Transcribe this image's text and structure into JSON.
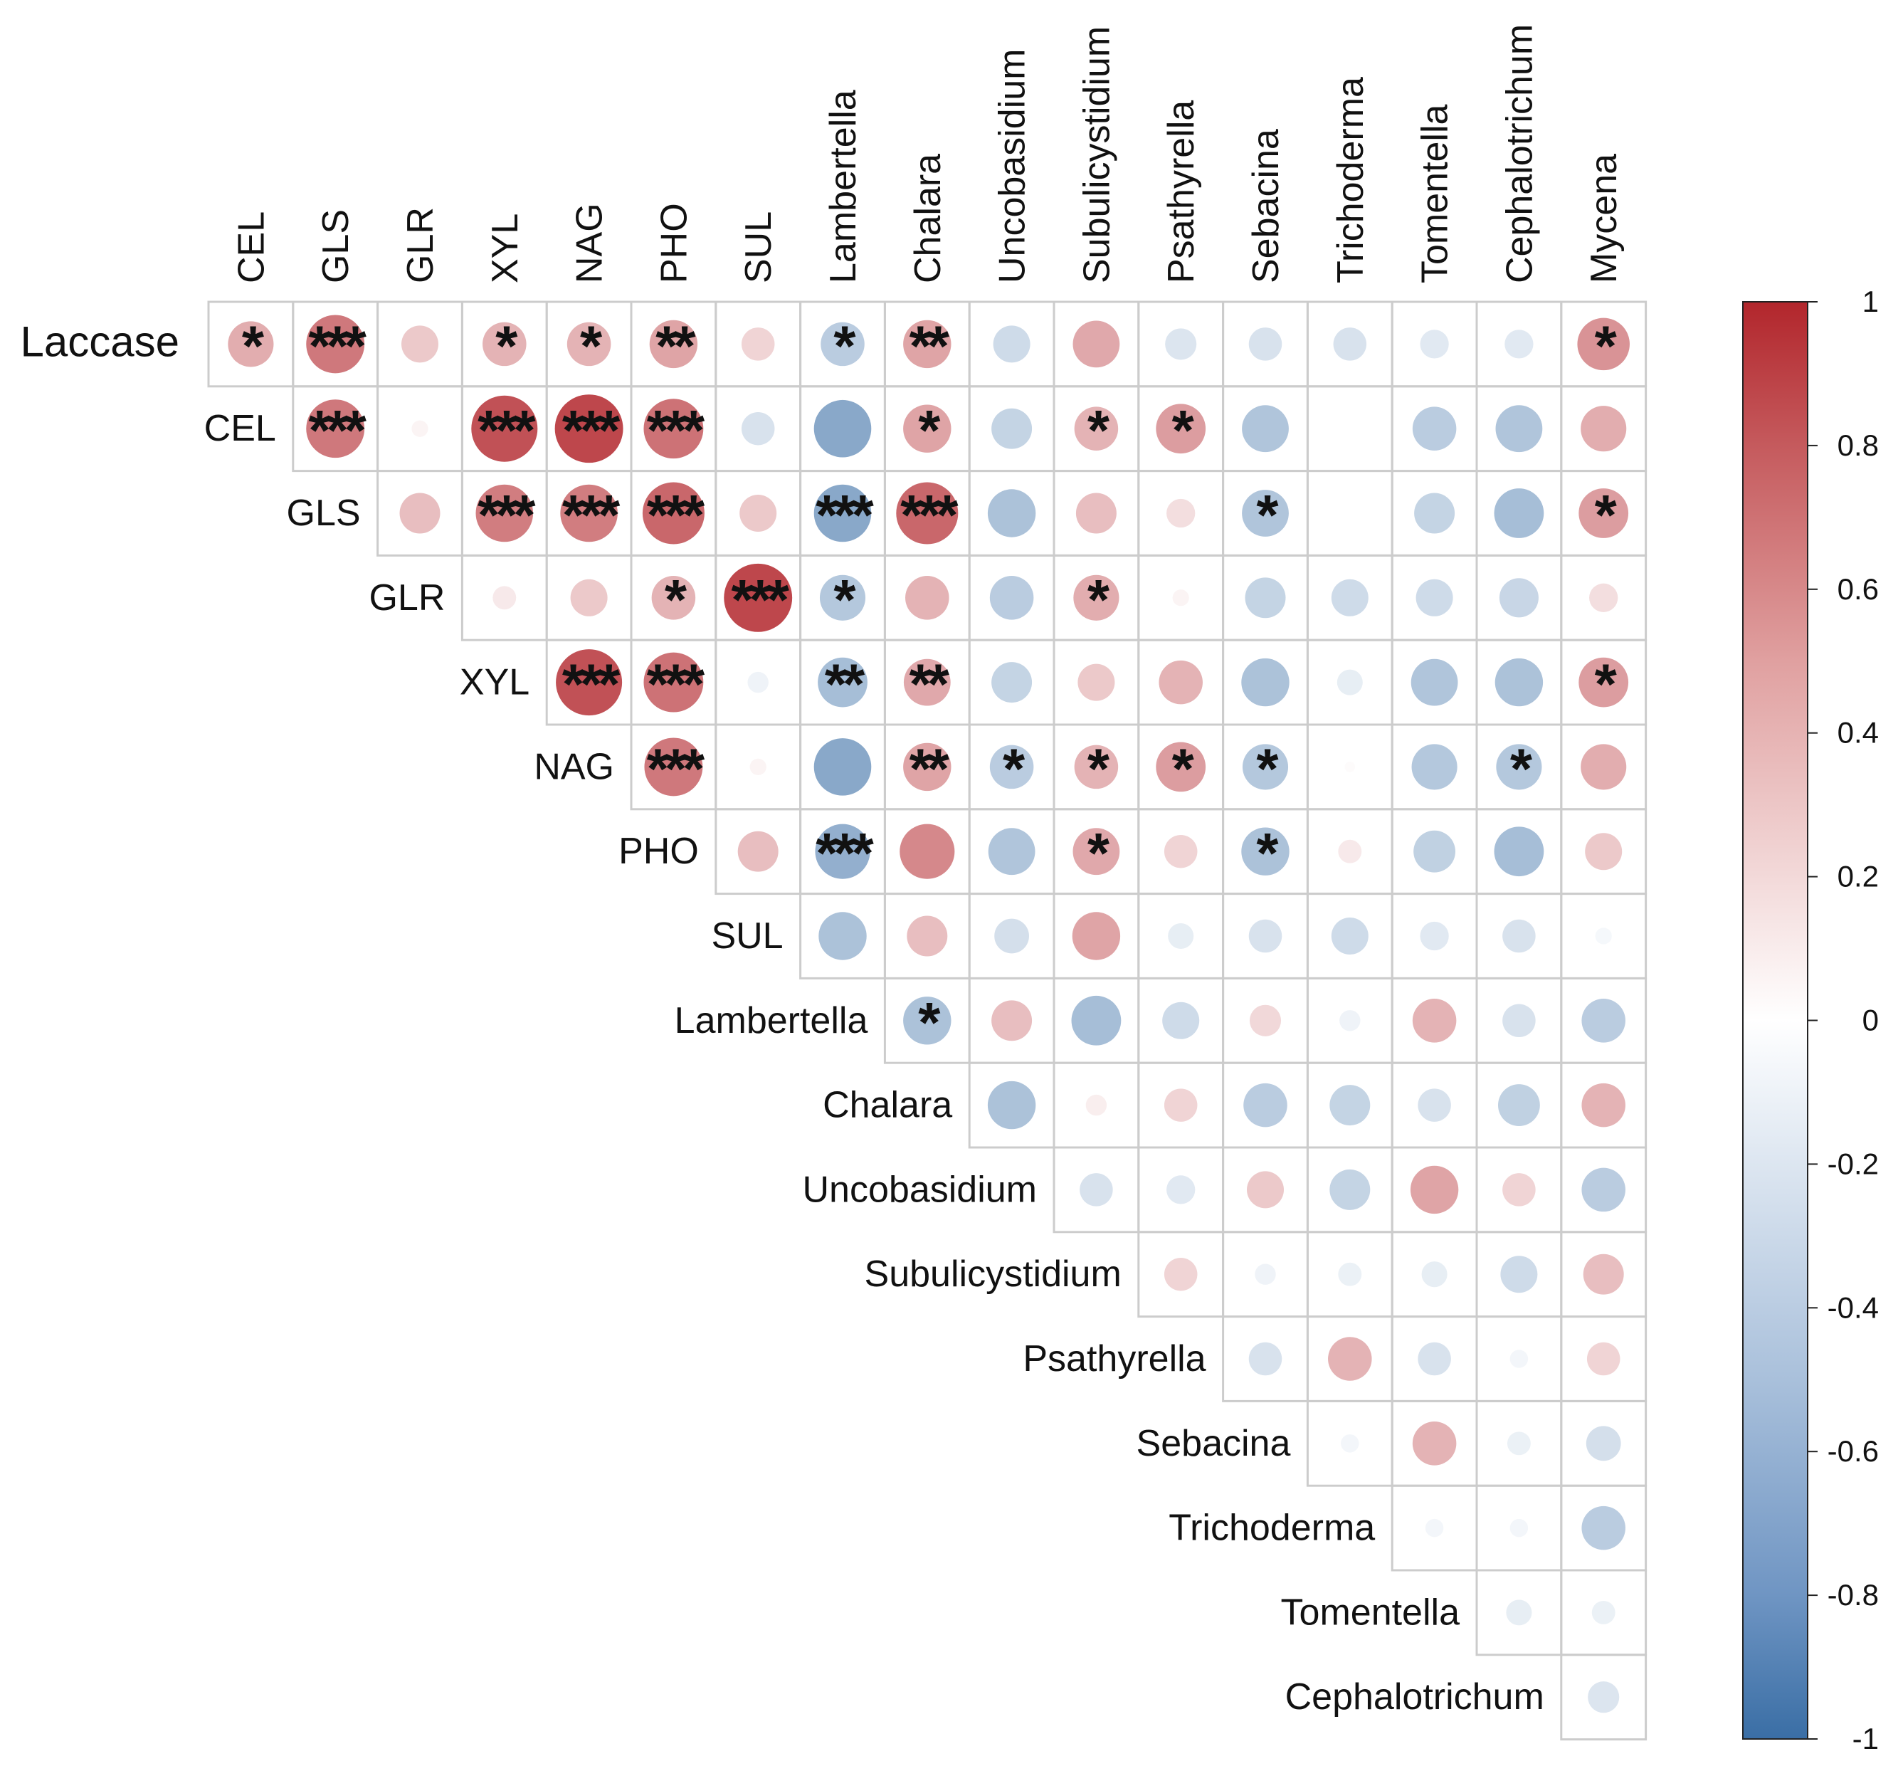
{
  "chart_data": {
    "type": "heatmap",
    "style": "upper-triangle correlation circles",
    "title": "",
    "rows": [
      "Laccase",
      "CEL",
      "GLS",
      "GLR",
      "XYL",
      "NAG",
      "PHO",
      "SUL",
      "Lambertella",
      "Chalara",
      "Uncobasidium",
      "Subulicystidium",
      "Psathyrella",
      "Sebacina",
      "Trichoderma",
      "Tomentella",
      "Cephalotrichum"
    ],
    "columns": [
      "CEL",
      "GLS",
      "GLR",
      "XYL",
      "NAG",
      "PHO",
      "SUL",
      "Lambertella",
      "Chalara",
      "Uncobasidium",
      "Subulicystidium",
      "Psathyrella",
      "Sebacina",
      "Trichoderma",
      "Tomentella",
      "Cephalotrichum",
      "Mycena"
    ],
    "values": [
      [
        0.38,
        0.62,
        0.25,
        0.35,
        0.35,
        0.42,
        0.2,
        -0.35,
        0.42,
        -0.25,
        0.4,
        -0.18,
        -0.2,
        -0.2,
        -0.15,
        -0.15,
        0.5
      ],
      [
        null,
        0.62,
        0.05,
        0.8,
        0.85,
        0.65,
        -0.2,
        -0.6,
        0.42,
        -0.3,
        0.35,
        0.45,
        -0.4,
        null,
        -0.35,
        -0.4,
        0.38
      ],
      [
        null,
        null,
        0.3,
        0.6,
        0.6,
        0.7,
        0.25,
        -0.6,
        0.7,
        -0.42,
        0.3,
        0.15,
        -0.4,
        null,
        -0.3,
        -0.45,
        0.45
      ],
      [
        null,
        null,
        null,
        0.1,
        0.25,
        0.35,
        0.85,
        -0.38,
        0.35,
        -0.35,
        0.38,
        0.05,
        -0.3,
        -0.25,
        -0.25,
        -0.28,
        0.15
      ],
      [
        null,
        null,
        null,
        null,
        0.8,
        0.65,
        -0.08,
        -0.45,
        0.4,
        -0.3,
        0.25,
        0.35,
        -0.42,
        -0.12,
        -0.4,
        -0.42,
        0.45
      ],
      [
        null,
        null,
        null,
        null,
        null,
        0.62,
        0.05,
        -0.6,
        0.42,
        -0.35,
        0.35,
        0.45,
        -0.38,
        0.02,
        -0.38,
        -0.38,
        0.38
      ],
      [
        null,
        null,
        null,
        null,
        null,
        null,
        0.3,
        -0.55,
        0.55,
        -0.4,
        0.4,
        0.2,
        -0.42,
        0.1,
        -0.32,
        -0.45,
        0.25
      ],
      [
        null,
        null,
        null,
        null,
        null,
        null,
        null,
        -0.42,
        0.3,
        -0.22,
        0.42,
        -0.12,
        -0.2,
        -0.25,
        -0.15,
        -0.2,
        -0.05
      ],
      [
        null,
        null,
        null,
        null,
        null,
        null,
        null,
        null,
        -0.42,
        0.3,
        -0.45,
        -0.25,
        0.18,
        -0.08,
        0.35,
        -0.2,
        -0.35
      ],
      [
        null,
        null,
        null,
        null,
        null,
        null,
        null,
        null,
        null,
        -0.42,
        0.08,
        0.2,
        -0.35,
        -0.3,
        -0.2,
        -0.32,
        0.35
      ],
      [
        null,
        null,
        null,
        null,
        null,
        null,
        null,
        null,
        null,
        null,
        -0.2,
        -0.15,
        0.25,
        -0.3,
        0.42,
        0.2,
        -0.35
      ],
      [
        null,
        null,
        null,
        null,
        null,
        null,
        null,
        null,
        null,
        null,
        null,
        0.2,
        -0.08,
        -0.1,
        -0.12,
        -0.25,
        0.3
      ],
      [
        null,
        null,
        null,
        null,
        null,
        null,
        null,
        null,
        null,
        null,
        null,
        null,
        -0.2,
        0.35,
        -0.2,
        -0.06,
        0.2
      ],
      [
        null,
        null,
        null,
        null,
        null,
        null,
        null,
        null,
        null,
        null,
        null,
        null,
        null,
        -0.06,
        0.35,
        -0.1,
        -0.22
      ],
      [
        null,
        null,
        null,
        null,
        null,
        null,
        null,
        null,
        null,
        null,
        null,
        null,
        null,
        null,
        -0.06,
        -0.06,
        -0.35
      ],
      [
        null,
        null,
        null,
        null,
        null,
        null,
        null,
        null,
        null,
        null,
        null,
        null,
        null,
        null,
        null,
        -0.12,
        -0.1
      ],
      [
        null,
        null,
        null,
        null,
        null,
        null,
        null,
        null,
        null,
        null,
        null,
        null,
        null,
        null,
        null,
        null,
        -0.18
      ]
    ],
    "significance": [
      [
        "*",
        "***",
        "",
        "*",
        "*",
        "**",
        "",
        "*",
        "**",
        "",
        "",
        "",
        "",
        "",
        "",
        "",
        "*"
      ],
      [
        "",
        "***",
        "",
        "***",
        "***",
        "***",
        "",
        "",
        "*",
        "",
        "*",
        "*",
        "",
        "",
        "",
        "",
        ""
      ],
      [
        "",
        "",
        "",
        "***",
        "***",
        "***",
        "",
        "***",
        "***",
        "",
        "",
        "",
        "*",
        "",
        "",
        "",
        "*"
      ],
      [
        "",
        "",
        "",
        "",
        "",
        "*",
        "***",
        "*",
        "",
        "",
        "*",
        "",
        "",
        "",
        "",
        "",
        ""
      ],
      [
        "",
        "",
        "",
        "",
        "***",
        "***",
        "",
        "**",
        "**",
        "",
        "",
        "",
        "",
        "",
        "",
        "",
        "*"
      ],
      [
        "",
        "",
        "",
        "",
        "",
        "***",
        "",
        "",
        "**",
        "*",
        "*",
        "*",
        "*",
        "",
        "",
        "*",
        ""
      ],
      [
        "",
        "",
        "",
        "",
        "",
        "",
        "",
        "***",
        "",
        "",
        "*",
        "",
        "*",
        "",
        "",
        "",
        ""
      ],
      [
        "",
        "",
        "",
        "",
        "",
        "",
        "",
        "",
        "",
        "",
        "",
        "",
        "",
        "",
        "",
        "",
        ""
      ],
      [
        "",
        "",
        "",
        "",
        "",
        "",
        "",
        "",
        "*",
        "",
        "",
        "",
        "",
        "",
        "",
        "",
        ""
      ],
      [
        "",
        "",
        "",
        "",
        "",
        "",
        "",
        "",
        "",
        "",
        "",
        "",
        "",
        "",
        "",
        "",
        ""
      ],
      [
        "",
        "",
        "",
        "",
        "",
        "",
        "",
        "",
        "",
        "",
        "",
        "",
        "",
        "",
        "",
        "",
        ""
      ],
      [
        "",
        "",
        "",
        "",
        "",
        "",
        "",
        "",
        "",
        "",
        "",
        "",
        "",
        "",
        "",
        "",
        ""
      ],
      [
        "",
        "",
        "",
        "",
        "",
        "",
        "",
        "",
        "",
        "",
        "",
        "",
        "",
        "",
        "",
        "",
        ""
      ],
      [
        "",
        "",
        "",
        "",
        "",
        "",
        "",
        "",
        "",
        "",
        "",
        "",
        "",
        "",
        "",
        "",
        ""
      ],
      [
        "",
        "",
        "",
        "",
        "",
        "",
        "",
        "",
        "",
        "",
        "",
        "",
        "",
        "",
        "",
        "",
        ""
      ],
      [
        "",
        "",
        "",
        "",
        "",
        "",
        "",
        "",
        "",
        "",
        "",
        "",
        "",
        "",
        "",
        "",
        ""
      ],
      [
        "",
        "",
        "",
        "",
        "",
        "",
        "",
        "",
        "",
        "",
        "",
        "",
        "",
        "",
        "",
        "",
        ""
      ]
    ],
    "color_scale": {
      "min": -1,
      "max": 1,
      "tick_labels": [
        "1",
        "0.8",
        "0.6",
        "0.4",
        "0.2",
        "0",
        "-0.2",
        "-0.4",
        "-0.6",
        "-0.8",
        "-1"
      ],
      "low_color": "#3a6ea5",
      "mid_color": "#ffffff",
      "high_color": "#b2262c"
    },
    "grid_color": "#cccccc"
  }
}
